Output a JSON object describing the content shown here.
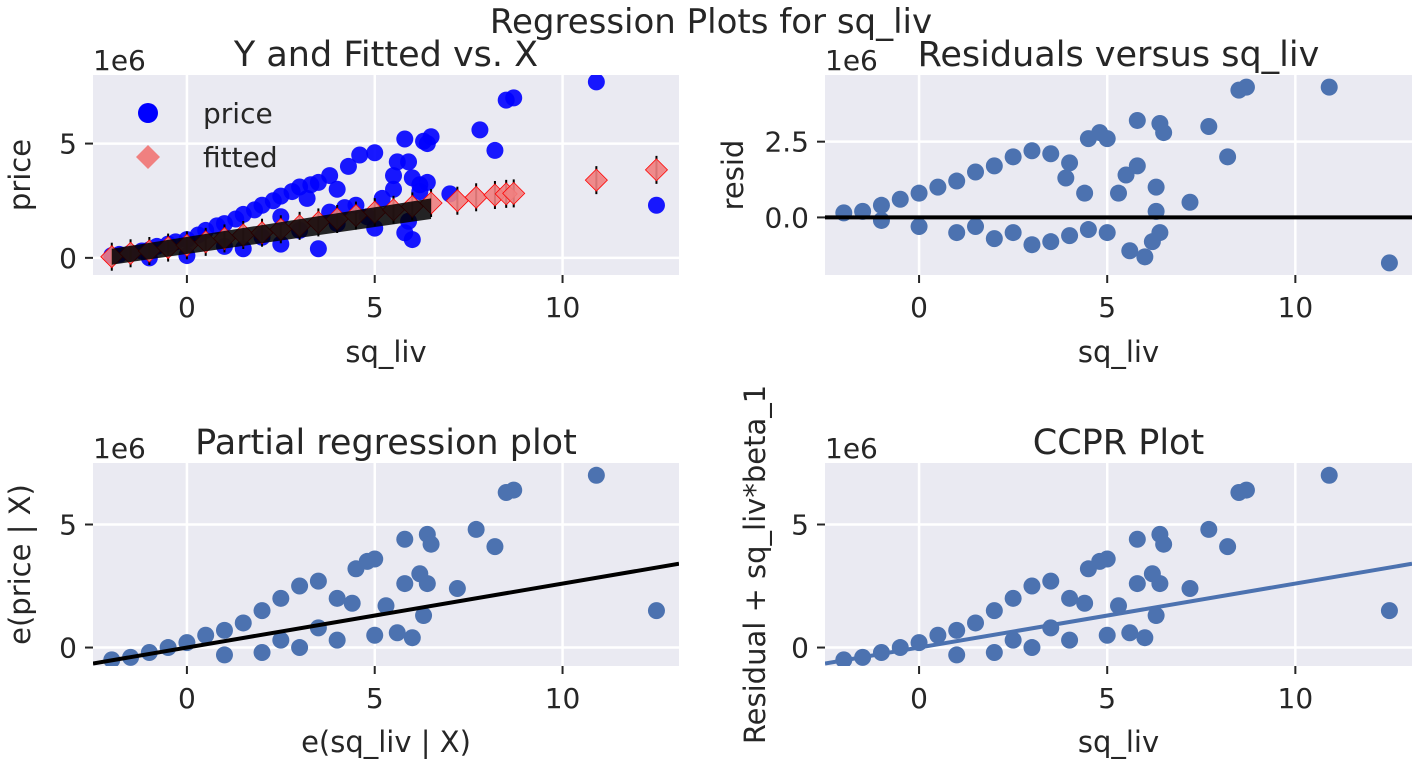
{
  "figure_title": "Regression Plots for sq_liv",
  "colors": {
    "background": "#eaeaf2",
    "grid": "#ffffff",
    "price": "#0000ff",
    "fitted": "#f08080",
    "fitted_edge": "#ff0000",
    "seaborn_blue": "#4c72b0",
    "line_black": "#000000"
  },
  "chart_data": [
    {
      "id": "yfitted",
      "type": "scatter",
      "title": "Y and Fitted vs. X",
      "xlabel": "sq_liv",
      "ylabel": "price",
      "y_offset_label": "1e6",
      "xlim": [
        -2.5,
        13.1
      ],
      "ylim": [
        -0.75,
        8.0
      ],
      "xticks": [
        0,
        5,
        10
      ],
      "yticks": [
        0,
        5
      ],
      "grid": true,
      "legend": {
        "placement": "top-left",
        "entries": [
          {
            "label": "price",
            "marker": "circle"
          },
          {
            "label": "fitted",
            "marker": "diamond"
          }
        ]
      },
      "series": [
        {
          "name": "price",
          "marker": "circle",
          "points": [
            [
              -2.0,
              0.1
            ],
            [
              -1.8,
              0.15
            ],
            [
              -1.5,
              0.2
            ],
            [
              -1.2,
              0.3
            ],
            [
              -1.0,
              0.35
            ],
            [
              -0.8,
              0.5
            ],
            [
              -0.5,
              0.6
            ],
            [
              -0.3,
              0.7
            ],
            [
              0,
              0.8
            ],
            [
              0.3,
              1.0
            ],
            [
              0.5,
              1.2
            ],
            [
              0.8,
              1.4
            ],
            [
              1.0,
              1.5
            ],
            [
              1.3,
              1.7
            ],
            [
              1.5,
              1.9
            ],
            [
              1.8,
              2.1
            ],
            [
              2.0,
              2.3
            ],
            [
              2.3,
              2.5
            ],
            [
              2.5,
              2.7
            ],
            [
              2.8,
              2.9
            ],
            [
              3.0,
              3.1
            ],
            [
              3.3,
              3.2
            ],
            [
              3.5,
              3.3
            ],
            [
              3.8,
              3.6
            ],
            [
              4.0,
              3.0
            ],
            [
              4.3,
              4.0
            ],
            [
              4.6,
              4.5
            ],
            [
              5.0,
              4.6
            ],
            [
              5.5,
              3.6
            ],
            [
              5.8,
              5.2
            ],
            [
              5.9,
              4.2
            ],
            [
              6.5,
              5.3
            ],
            [
              6.4,
              5.0
            ],
            [
              6.2,
              3.2
            ],
            [
              7.0,
              2.8
            ],
            [
              7.8,
              5.6
            ],
            [
              8.2,
              4.7
            ],
            [
              8.5,
              6.9
            ],
            [
              8.7,
              7.0
            ],
            [
              10.9,
              7.7
            ],
            [
              12.5,
              2.3
            ],
            [
              1.0,
              0.5
            ],
            [
              2.0,
              0.9
            ],
            [
              3.0,
              1.2
            ],
            [
              4.0,
              1.5
            ],
            [
              5.0,
              1.3
            ],
            [
              5.8,
              1.1
            ],
            [
              6.0,
              0.8
            ],
            [
              3.5,
              0.4
            ],
            [
              2.5,
              0.6
            ],
            [
              4.5,
              2.3
            ],
            [
              5.2,
              2.6
            ],
            [
              5.5,
              3.0
            ],
            [
              6.0,
              3.5
            ],
            [
              6.2,
              2.9
            ],
            [
              6.4,
              3.3
            ],
            [
              4.8,
              1.8
            ],
            [
              3.8,
              2.0
            ],
            [
              0,
              0.1
            ],
            [
              -1.0,
              0.0
            ],
            [
              1.5,
              0.4
            ],
            [
              2.5,
              1.8
            ],
            [
              3.2,
              2.6
            ],
            [
              4.2,
              2.2
            ],
            [
              5.9,
              1.6
            ],
            [
              5.6,
              4.2
            ],
            [
              6.3,
              5.1
            ]
          ]
        },
        {
          "name": "fitted",
          "marker": "diamond",
          "points": [
            [
              -2.0,
              0.05
            ],
            [
              -1.5,
              0.2
            ],
            [
              -1.0,
              0.3
            ],
            [
              -0.5,
              0.45
            ],
            [
              0,
              0.55
            ],
            [
              0.5,
              0.7
            ],
            [
              1.0,
              0.85
            ],
            [
              1.5,
              1.0
            ],
            [
              2.0,
              1.1
            ],
            [
              2.5,
              1.25
            ],
            [
              3.0,
              1.4
            ],
            [
              3.5,
              1.55
            ],
            [
              4.0,
              1.7
            ],
            [
              4.5,
              1.85
            ],
            [
              5.0,
              2.0
            ],
            [
              5.5,
              2.1
            ],
            [
              6.0,
              2.25
            ],
            [
              6.5,
              2.4
            ],
            [
              7.2,
              2.5
            ],
            [
              7.7,
              2.65
            ],
            [
              8.2,
              2.75
            ],
            [
              8.5,
              2.8
            ],
            [
              8.7,
              2.82
            ],
            [
              10.9,
              3.4
            ],
            [
              12.5,
              3.85
            ]
          ]
        }
      ]
    },
    {
      "id": "resid",
      "type": "scatter",
      "title": "Residuals versus sq_liv",
      "xlabel": "sq_liv",
      "ylabel": "resid",
      "y_offset_label": "1e6",
      "xlim": [
        -2.5,
        13.1
      ],
      "ylim": [
        -1.9,
        4.7
      ],
      "xticks": [
        0,
        5,
        10
      ],
      "yticks": [
        0.0,
        2.5
      ],
      "ytick_labels": [
        "0.0",
        "2.5"
      ],
      "grid": true,
      "hline": 0,
      "series": [
        {
          "name": "resid",
          "marker": "circle",
          "points": [
            [
              -2.0,
              0.15
            ],
            [
              -1.5,
              0.2
            ],
            [
              -1.0,
              0.4
            ],
            [
              -0.5,
              0.6
            ],
            [
              0,
              0.8
            ],
            [
              0.5,
              1.0
            ],
            [
              1.0,
              1.2
            ],
            [
              1.5,
              1.5
            ],
            [
              2.0,
              1.7
            ],
            [
              2.5,
              2.0
            ],
            [
              3.0,
              2.2
            ],
            [
              3.5,
              2.1
            ],
            [
              4.0,
              1.8
            ],
            [
              4.5,
              2.6
            ],
            [
              4.8,
              2.8
            ],
            [
              5.0,
              2.6
            ],
            [
              5.8,
              3.2
            ],
            [
              6.4,
              3.1
            ],
            [
              6.5,
              2.8
            ],
            [
              7.7,
              3.0
            ],
            [
              8.2,
              2.0
            ],
            [
              8.5,
              4.2
            ],
            [
              8.7,
              4.3
            ],
            [
              10.9,
              4.3
            ],
            [
              12.5,
              -1.5
            ],
            [
              0,
              -0.3
            ],
            [
              1.0,
              -0.5
            ],
            [
              2.0,
              -0.7
            ],
            [
              3.0,
              -0.9
            ],
            [
              3.5,
              -0.8
            ],
            [
              4.0,
              -0.6
            ],
            [
              4.5,
              -0.4
            ],
            [
              5.0,
              -0.5
            ],
            [
              5.6,
              -1.1
            ],
            [
              6.0,
              -1.3
            ],
            [
              6.2,
              -0.8
            ],
            [
              6.4,
              -0.5
            ],
            [
              7.2,
              0.5
            ],
            [
              5.8,
              1.7
            ],
            [
              5.5,
              1.4
            ],
            [
              6.3,
              1.0
            ],
            [
              3.9,
              1.3
            ],
            [
              4.4,
              0.8
            ],
            [
              2.5,
              -0.5
            ],
            [
              1.5,
              -0.3
            ],
            [
              -1.0,
              -0.1
            ],
            [
              5.3,
              0.8
            ],
            [
              6.3,
              0.2
            ]
          ]
        }
      ]
    },
    {
      "id": "partreg",
      "type": "scatter",
      "title": "Partial regression plot",
      "xlabel": "e(sq_liv | X)",
      "ylabel": "e(price | X)",
      "y_offset_label": "1e6",
      "xlim": [
        -2.5,
        13.1
      ],
      "ylim": [
        -0.75,
        7.5
      ],
      "xticks": [
        0,
        5,
        10
      ],
      "yticks": [
        0,
        5
      ],
      "grid": true,
      "fit_line": {
        "slope": 0.26,
        "intercept": 0.0
      },
      "series": [
        {
          "name": "partial",
          "marker": "circle",
          "points": [
            [
              -2.0,
              -0.5
            ],
            [
              -1.5,
              -0.4
            ],
            [
              -1.0,
              -0.2
            ],
            [
              -0.5,
              0.0
            ],
            [
              0,
              0.2
            ],
            [
              0.5,
              0.5
            ],
            [
              1.0,
              0.7
            ],
            [
              1.5,
              1.0
            ],
            [
              2.0,
              1.5
            ],
            [
              2.5,
              2.0
            ],
            [
              3.0,
              2.5
            ],
            [
              3.5,
              2.7
            ],
            [
              4.0,
              2.0
            ],
            [
              4.5,
              3.2
            ],
            [
              4.8,
              3.5
            ],
            [
              5.0,
              3.6
            ],
            [
              5.8,
              4.4
            ],
            [
              6.4,
              4.6
            ],
            [
              6.5,
              4.2
            ],
            [
              7.7,
              4.8
            ],
            [
              8.2,
              4.1
            ],
            [
              8.5,
              6.3
            ],
            [
              8.7,
              6.4
            ],
            [
              10.9,
              7.0
            ],
            [
              12.5,
              1.5
            ],
            [
              1.0,
              -0.3
            ],
            [
              2.0,
              -0.2
            ],
            [
              3.0,
              0.0
            ],
            [
              4.0,
              0.3
            ],
            [
              5.0,
              0.5
            ],
            [
              5.6,
              0.6
            ],
            [
              6.0,
              0.4
            ],
            [
              7.2,
              2.4
            ],
            [
              5.8,
              2.6
            ],
            [
              6.2,
              3.0
            ],
            [
              6.4,
              2.6
            ],
            [
              4.4,
              1.8
            ],
            [
              3.5,
              0.8
            ],
            [
              2.5,
              0.3
            ],
            [
              5.3,
              1.7
            ],
            [
              6.3,
              1.3
            ]
          ]
        }
      ]
    },
    {
      "id": "ccpr",
      "type": "scatter",
      "title": "CCPR Plot",
      "xlabel": "sq_liv",
      "ylabel": "Residual + sq_liv*beta_1",
      "y_offset_label": "1e6",
      "xlim": [
        -2.5,
        13.1
      ],
      "ylim": [
        -0.75,
        7.5
      ],
      "xticks": [
        0,
        5,
        10
      ],
      "yticks": [
        0,
        5
      ],
      "grid": true,
      "fit_line": {
        "slope": 0.26,
        "intercept": 0.0
      },
      "series": [
        {
          "name": "ccpr",
          "marker": "circle",
          "points": [
            [
              -2.0,
              -0.5
            ],
            [
              -1.5,
              -0.4
            ],
            [
              -1.0,
              -0.2
            ],
            [
              -0.5,
              0.0
            ],
            [
              0,
              0.2
            ],
            [
              0.5,
              0.5
            ],
            [
              1.0,
              0.7
            ],
            [
              1.5,
              1.0
            ],
            [
              2.0,
              1.5
            ],
            [
              2.5,
              2.0
            ],
            [
              3.0,
              2.5
            ],
            [
              3.5,
              2.7
            ],
            [
              4.0,
              2.0
            ],
            [
              4.5,
              3.2
            ],
            [
              4.8,
              3.5
            ],
            [
              5.0,
              3.6
            ],
            [
              5.8,
              4.4
            ],
            [
              6.4,
              4.6
            ],
            [
              6.5,
              4.2
            ],
            [
              7.7,
              4.8
            ],
            [
              8.2,
              4.1
            ],
            [
              8.5,
              6.3
            ],
            [
              8.7,
              6.4
            ],
            [
              10.9,
              7.0
            ],
            [
              12.5,
              1.5
            ],
            [
              1.0,
              -0.3
            ],
            [
              2.0,
              -0.2
            ],
            [
              3.0,
              0.0
            ],
            [
              4.0,
              0.3
            ],
            [
              5.0,
              0.5
            ],
            [
              5.6,
              0.6
            ],
            [
              6.0,
              0.4
            ],
            [
              7.2,
              2.4
            ],
            [
              5.8,
              2.6
            ],
            [
              6.2,
              3.0
            ],
            [
              6.4,
              2.6
            ],
            [
              4.4,
              1.8
            ],
            [
              3.5,
              0.8
            ],
            [
              2.5,
              0.3
            ],
            [
              5.3,
              1.7
            ],
            [
              6.3,
              1.3
            ]
          ]
        }
      ]
    }
  ]
}
